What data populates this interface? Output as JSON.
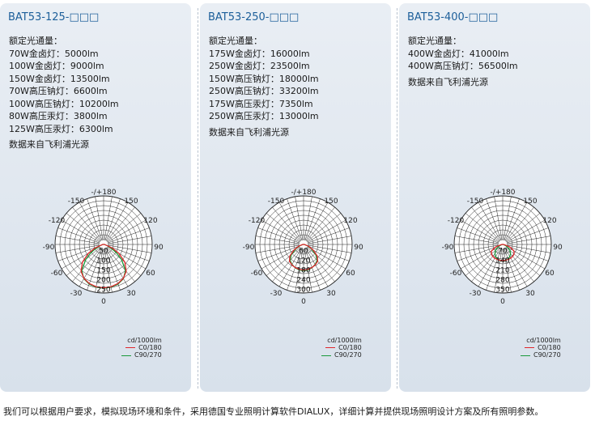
{
  "panels": [
    {
      "title": "BAT53-125-□□□",
      "flux_heading": "额定光通量：",
      "flux_lines": [
        "70W金卤灯：5000lm",
        "100W金卤灯：9000lm",
        "150W金卤灯：13500lm",
        "70W高压钠灯：6600lm",
        "100W高压钠灯：10200lm",
        "80W高压汞灯：3800lm",
        "125W高压汞灯：6300lm"
      ],
      "source_note": "数据来自飞利浦光源",
      "angle_labels": [
        "-/+180",
        "-150",
        "150",
        "-120",
        "120",
        "-90",
        "90",
        "-60",
        "60",
        "-30",
        "30",
        "0"
      ],
      "radial_labels": [
        "50",
        "100",
        "150",
        "200",
        "250"
      ],
      "radial_max": 262.5,
      "c0_180": [
        [
          0,
          234
        ],
        [
          10,
          232
        ],
        [
          20,
          225
        ],
        [
          30,
          212
        ],
        [
          40,
          190
        ],
        [
          50,
          150
        ],
        [
          60,
          95
        ],
        [
          66,
          55
        ],
        [
          70,
          28
        ],
        [
          80,
          8
        ],
        [
          90,
          4
        ]
      ],
      "c90_270": [
        [
          0,
          236
        ],
        [
          10,
          234
        ],
        [
          20,
          228
        ],
        [
          30,
          214
        ],
        [
          40,
          184
        ],
        [
          50,
          126
        ],
        [
          56,
          88
        ],
        [
          60,
          62
        ],
        [
          70,
          22
        ],
        [
          80,
          8
        ],
        [
          90,
          4
        ]
      ],
      "legend_unit": "cd/1000lm",
      "legend_c0": "C0/180",
      "legend_c90": "C90/270"
    },
    {
      "title": "BAT53-250-□□□",
      "flux_heading": "额定光通量：",
      "flux_lines": [
        "175W金卤灯：16000lm",
        "250W金卤灯：23500lm",
        "150W高压钠灯：18000lm",
        "250W高压钠灯：33200lm",
        "175W高压汞灯：7350lm",
        "250W高压汞灯：13000lm"
      ],
      "source_note": "数据来自飞利浦光源",
      "angle_labels": [
        "-/+180",
        "-150",
        "150",
        "-120",
        "120",
        "-90",
        "90",
        "-60",
        "60",
        "-30",
        "30",
        "0"
      ],
      "radial_labels": [
        "60",
        "120",
        "180",
        "240",
        "300"
      ],
      "radial_max": 315,
      "c0_180": [
        [
          0,
          166
        ],
        [
          10,
          164
        ],
        [
          20,
          159
        ],
        [
          30,
          152
        ],
        [
          40,
          142
        ],
        [
          50,
          116
        ],
        [
          60,
          72
        ],
        [
          70,
          34
        ],
        [
          80,
          10
        ],
        [
          90,
          4
        ]
      ],
      "c90_270": [
        [
          0,
          170
        ],
        [
          10,
          168
        ],
        [
          20,
          160
        ],
        [
          30,
          150
        ],
        [
          40,
          136
        ],
        [
          50,
          104
        ],
        [
          60,
          58
        ],
        [
          70,
          28
        ],
        [
          80,
          8
        ],
        [
          90,
          4
        ]
      ],
      "legend_unit": "cd/1000lm",
      "legend_c0": "C0/180",
      "legend_c90": "C90/270"
    },
    {
      "title": "BAT53-400-□□□",
      "flux_heading": "额定光通量：",
      "flux_lines": [
        "400W金卤灯：41000lm",
        "400W高压钠灯：56500lm"
      ],
      "source_note": "数据来自飞利浦光源",
      "angle_labels": [
        "-/+180",
        "-150",
        "150",
        "-120",
        "120",
        "-90",
        "90",
        "-60",
        "60",
        "-30",
        "30",
        "0"
      ],
      "radial_labels": [
        "70",
        "140",
        "210",
        "280",
        "350"
      ],
      "radial_max": 367.5,
      "c0_180": [
        [
          0,
          122
        ],
        [
          10,
          122
        ],
        [
          20,
          121
        ],
        [
          30,
          120
        ],
        [
          40,
          118
        ],
        [
          50,
          112
        ],
        [
          60,
          98
        ],
        [
          70,
          60
        ],
        [
          80,
          16
        ],
        [
          90,
          5
        ]
      ],
      "c90_270": [
        [
          0,
          126
        ],
        [
          10,
          124
        ],
        [
          20,
          118
        ],
        [
          30,
          106
        ],
        [
          40,
          92
        ],
        [
          50,
          72
        ],
        [
          60,
          46
        ],
        [
          70,
          20
        ],
        [
          80,
          6
        ],
        [
          90,
          3
        ]
      ],
      "legend_unit": "cd/1000lm",
      "legend_c0": "C0/180",
      "legend_c90": "C90/270"
    }
  ],
  "colors": {
    "c0_180": "#e1262b",
    "c90_270": "#1a9a3c",
    "title": "#1c5f9a",
    "grid": "#222222"
  },
  "footer_text": "我们可以根据用户要求，模拟现场环境和条件，采用德国专业照明计算软件DIALUX，详细计算并提供现场照明设计方案及所有照明参数。"
}
